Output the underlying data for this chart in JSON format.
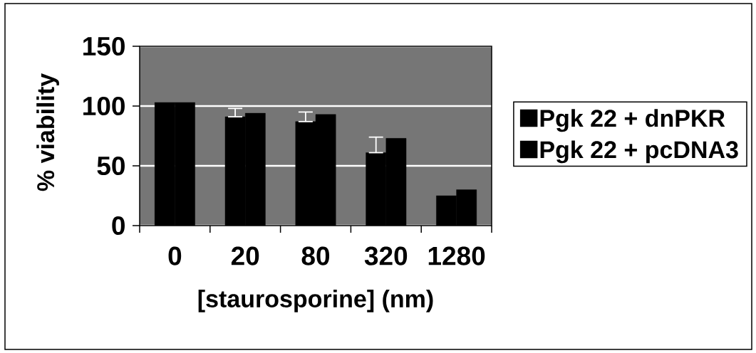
{
  "chart_data": {
    "type": "bar",
    "xlabel": "[staurosporine] (nm)",
    "ylabel": "% viability",
    "categories": [
      "0",
      "20",
      "80",
      "320",
      "1280"
    ],
    "series": [
      {
        "name": "Pgk 22 + dnPKR",
        "color": "#000000",
        "values": [
          103,
          91,
          87,
          61,
          25
        ],
        "errors": [
          null,
          [
            91,
            98
          ],
          [
            87,
            95
          ],
          [
            61,
            74
          ],
          null
        ]
      },
      {
        "name": "Pgk 22 + pcDNA3",
        "color": "#000000",
        "values": [
          103,
          94,
          93,
          73,
          30
        ]
      }
    ],
    "ylim": [
      0,
      150
    ],
    "yticks": [
      0,
      50,
      100,
      150
    ],
    "grid": "y",
    "legend": "right"
  }
}
